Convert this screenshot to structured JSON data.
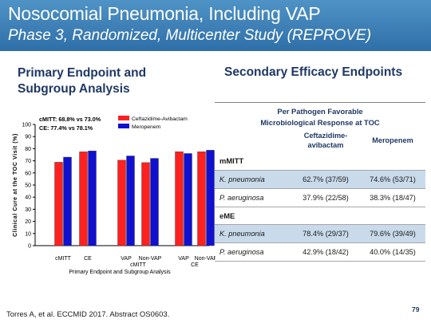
{
  "title": "Nosocomial Pneumonia, Including VAP",
  "subtitle": "Phase 3, Randomized, Multicenter Study (REPROVE)",
  "left_heading": "Primary Endpoint and Subgroup Analysis",
  "right_heading": "Secondary Efficacy Endpoints",
  "colors": {
    "banner": "#2f6fa8",
    "ceftazidime": "#ff2020",
    "meropenem": "#1010d0",
    "table_shade": "#c9daea",
    "heading": "#1f3864"
  },
  "chart_data": {
    "type": "bar",
    "categories": [
      "cMITT",
      "CE",
      "VAP",
      "Non-VAP",
      "VAP",
      "Non-VAP"
    ],
    "category_groups": [
      {
        "label": "",
        "members": [
          "cMITT",
          "CE"
        ]
      },
      {
        "label": "cMITT",
        "members": [
          "VAP",
          "Non-VAP"
        ]
      },
      {
        "label": "CE",
        "members": [
          "VAP",
          "Non-VAP"
        ]
      }
    ],
    "series": [
      {
        "name": "Ceftazidime-Avibactam",
        "color": "#ff2020",
        "values": [
          68.8,
          77.4,
          70.5,
          68.5,
          77.5,
          77.5
        ]
      },
      {
        "name": "Meropenem",
        "color": "#1010d0",
        "values": [
          73.0,
          78.1,
          74.0,
          72.0,
          76.0,
          78.7
        ]
      }
    ],
    "xlabel": "Primary Endpoint and Subgroup Analysis",
    "ylabel": "Clinical Cure at the TOC Visit (%)",
    "ylim": [
      0,
      100
    ],
    "yticks": [
      0,
      10,
      20,
      30,
      40,
      50,
      60,
      70,
      80,
      90,
      100
    ],
    "annotations": [
      "cMITT: 68.8% vs 73.0%",
      "CE: 77.4% vs 78.1%"
    ],
    "legend_placement": "top-right",
    "grid": false
  },
  "table": {
    "caption_line1": "Per Pathogen Favorable",
    "caption_line2": "Microbiological Response at TOC",
    "col1_line1": "Ceftazidime-",
    "col1_line2": "avibactam",
    "col2": "Meropenem",
    "groups": [
      {
        "label": "mMITT",
        "rows": [
          {
            "organism": "K. pneumonia",
            "caz": "62.7% (37/59)",
            "mero": "74.6% (53/71)"
          },
          {
            "organism": "P. aeruginosa",
            "caz": "37.9% (22/58)",
            "mero": "38.3% (18/47)"
          }
        ]
      },
      {
        "label": "eME",
        "rows": [
          {
            "organism": "K. pneumonia",
            "caz": "78.4% (29/37)",
            "mero": "79.6% (39/49)"
          },
          {
            "organism": "P. aeruginosa",
            "caz": "42.9% (18/42)",
            "mero": "40.0% (14/35)"
          }
        ]
      }
    ]
  },
  "footer": "Torres A, et al. ECCMID 2017. Abstract OS0603.",
  "page_number": "79"
}
